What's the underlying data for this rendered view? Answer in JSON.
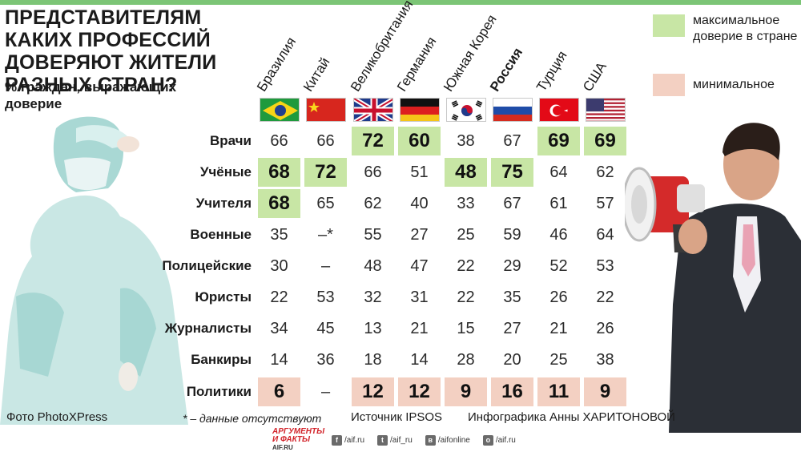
{
  "title": "ПРЕДСТАВИТЕЛЯМ КАКИХ ПРОФЕССИЙ ДОВЕРЯЮТ ЖИТЕЛИ РАЗНЫХ СТРАН?",
  "subtitle": "% граждан, выражающих доверие",
  "legend": {
    "max_label": "максимальное доверие в стране",
    "min_label": "минимальное",
    "max_color": "#c8e6a5",
    "min_color": "#f3d0c2"
  },
  "colors": {
    "accent_rule": "#7cc576"
  },
  "chart_data": {
    "type": "table",
    "title": "ПРЕДСТАВИТЕЛЯМ КАКИХ ПРОФЕССИЙ ДОВЕРЯЮТ ЖИТЕЛИ РАЗНЫХ СТРАН?",
    "unit": "% граждан, выражающих доверие",
    "columns": [
      "Бразилия",
      "Китай",
      "Великобритания",
      "Германия",
      "Южная Корея",
      "Россия",
      "Турция",
      "США"
    ],
    "flags": [
      "flag-brazil",
      "flag-china",
      "flag-uk",
      "flag-germany",
      "flag-south-korea",
      "flag-russia",
      "flag-turkey",
      "flag-usa"
    ],
    "rows": [
      {
        "label": "Врачи",
        "values": [
          "66",
          "66",
          "72",
          "60",
          "38",
          "67",
          "69",
          "69"
        ],
        "highlight": [
          "",
          "",
          "max",
          "max",
          "",
          "",
          "max",
          "max"
        ]
      },
      {
        "label": "Учёные",
        "values": [
          "68",
          "72",
          "66",
          "51",
          "48",
          "75",
          "64",
          "62"
        ],
        "highlight": [
          "max",
          "max",
          "",
          "",
          "max",
          "max",
          "",
          ""
        ]
      },
      {
        "label": "Учителя",
        "values": [
          "68",
          "65",
          "62",
          "40",
          "33",
          "67",
          "61",
          "57"
        ],
        "highlight": [
          "max",
          "",
          "",
          "",
          "",
          "",
          "",
          ""
        ]
      },
      {
        "label": "Военные",
        "values": [
          "35",
          "–*",
          "55",
          "27",
          "25",
          "59",
          "46",
          "64"
        ],
        "highlight": [
          "",
          "",
          "",
          "",
          "",
          "",
          "",
          ""
        ]
      },
      {
        "label": "Полицейские",
        "values": [
          "30",
          "–",
          "48",
          "47",
          "22",
          "29",
          "52",
          "53"
        ],
        "highlight": [
          "",
          "",
          "",
          "",
          "",
          "",
          "",
          ""
        ]
      },
      {
        "label": "Юристы",
        "values": [
          "22",
          "53",
          "32",
          "31",
          "22",
          "35",
          "26",
          "22"
        ],
        "highlight": [
          "",
          "",
          "",
          "",
          "",
          "",
          "",
          ""
        ]
      },
      {
        "label": "Журналисты",
        "values": [
          "34",
          "45",
          "13",
          "21",
          "15",
          "27",
          "21",
          "26"
        ],
        "highlight": [
          "",
          "",
          "",
          "",
          "",
          "",
          "",
          ""
        ]
      },
      {
        "label": "Банкиры",
        "values": [
          "14",
          "36",
          "18",
          "14",
          "28",
          "20",
          "25",
          "38"
        ],
        "highlight": [
          "",
          "",
          "",
          "",
          "",
          "",
          "",
          ""
        ]
      },
      {
        "label": "Политики",
        "values": [
          "6",
          "–",
          "12",
          "12",
          "9",
          "16",
          "11",
          "9"
        ],
        "highlight": [
          "min",
          "",
          "min",
          "min",
          "min",
          "min",
          "min",
          "min"
        ]
      }
    ]
  },
  "footer": {
    "photo_credit": "Фото PhotoXPress",
    "footnote": "* – данные отсутствуют",
    "source": "Источник IPSOS",
    "credit": "Инфографика Анны ХАРИТОНОВОЙ",
    "logo_text": "АРГУМЕНТЫ И ФАКТЫ",
    "logo_sub": "AIF.RU",
    "social": [
      {
        "icon": "facebook-icon",
        "glyph": "f",
        "label": "/aif.ru"
      },
      {
        "icon": "twitter-icon",
        "glyph": "t",
        "label": "/aif_ru"
      },
      {
        "icon": "vk-icon",
        "glyph": "в",
        "label": "/aifonline"
      },
      {
        "icon": "ok-icon",
        "glyph": "о",
        "label": "/aif.ru"
      }
    ]
  }
}
